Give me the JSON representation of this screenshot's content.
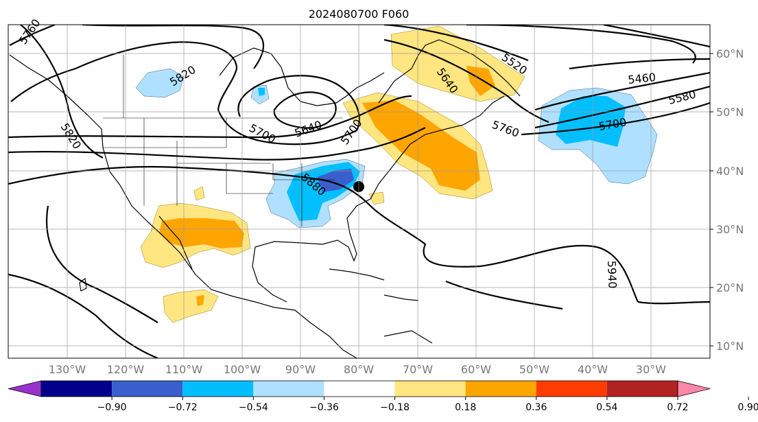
{
  "title": "2024080700 F060",
  "lat_labels": [
    "60°N",
    "50°N",
    "40°N",
    "30°N",
    "20°N",
    "10°N"
  ],
  "lon_labels": [
    "130°W",
    "120°W",
    "110°W",
    "100°W",
    "90°W",
    "80°W",
    "70°W",
    "60°W",
    "50°W",
    "40°W",
    "30°W"
  ],
  "contour_labels": [
    "5760",
    "5820",
    "5820",
    "5520",
    "5640",
    "5460",
    "5580",
    "5700",
    "5760",
    "5700",
    "5640",
    "5700",
    "5880",
    "5940"
  ],
  "colorbar": {
    "ticks": [
      "−0.90",
      "−0.72",
      "−0.54",
      "−0.36",
      "−0.18",
      "0.18",
      "0.36",
      "0.54",
      "0.72",
      "0.90"
    ],
    "colors": [
      "#9932cc",
      "#00008b",
      "#3a5fcd",
      "#00bfff",
      "#b0e0ff",
      "#ffffff",
      "#ffe680",
      "#ffa500",
      "#ff3c00",
      "#b22222",
      "#ff88aa"
    ]
  },
  "marker": "location-dot"
}
